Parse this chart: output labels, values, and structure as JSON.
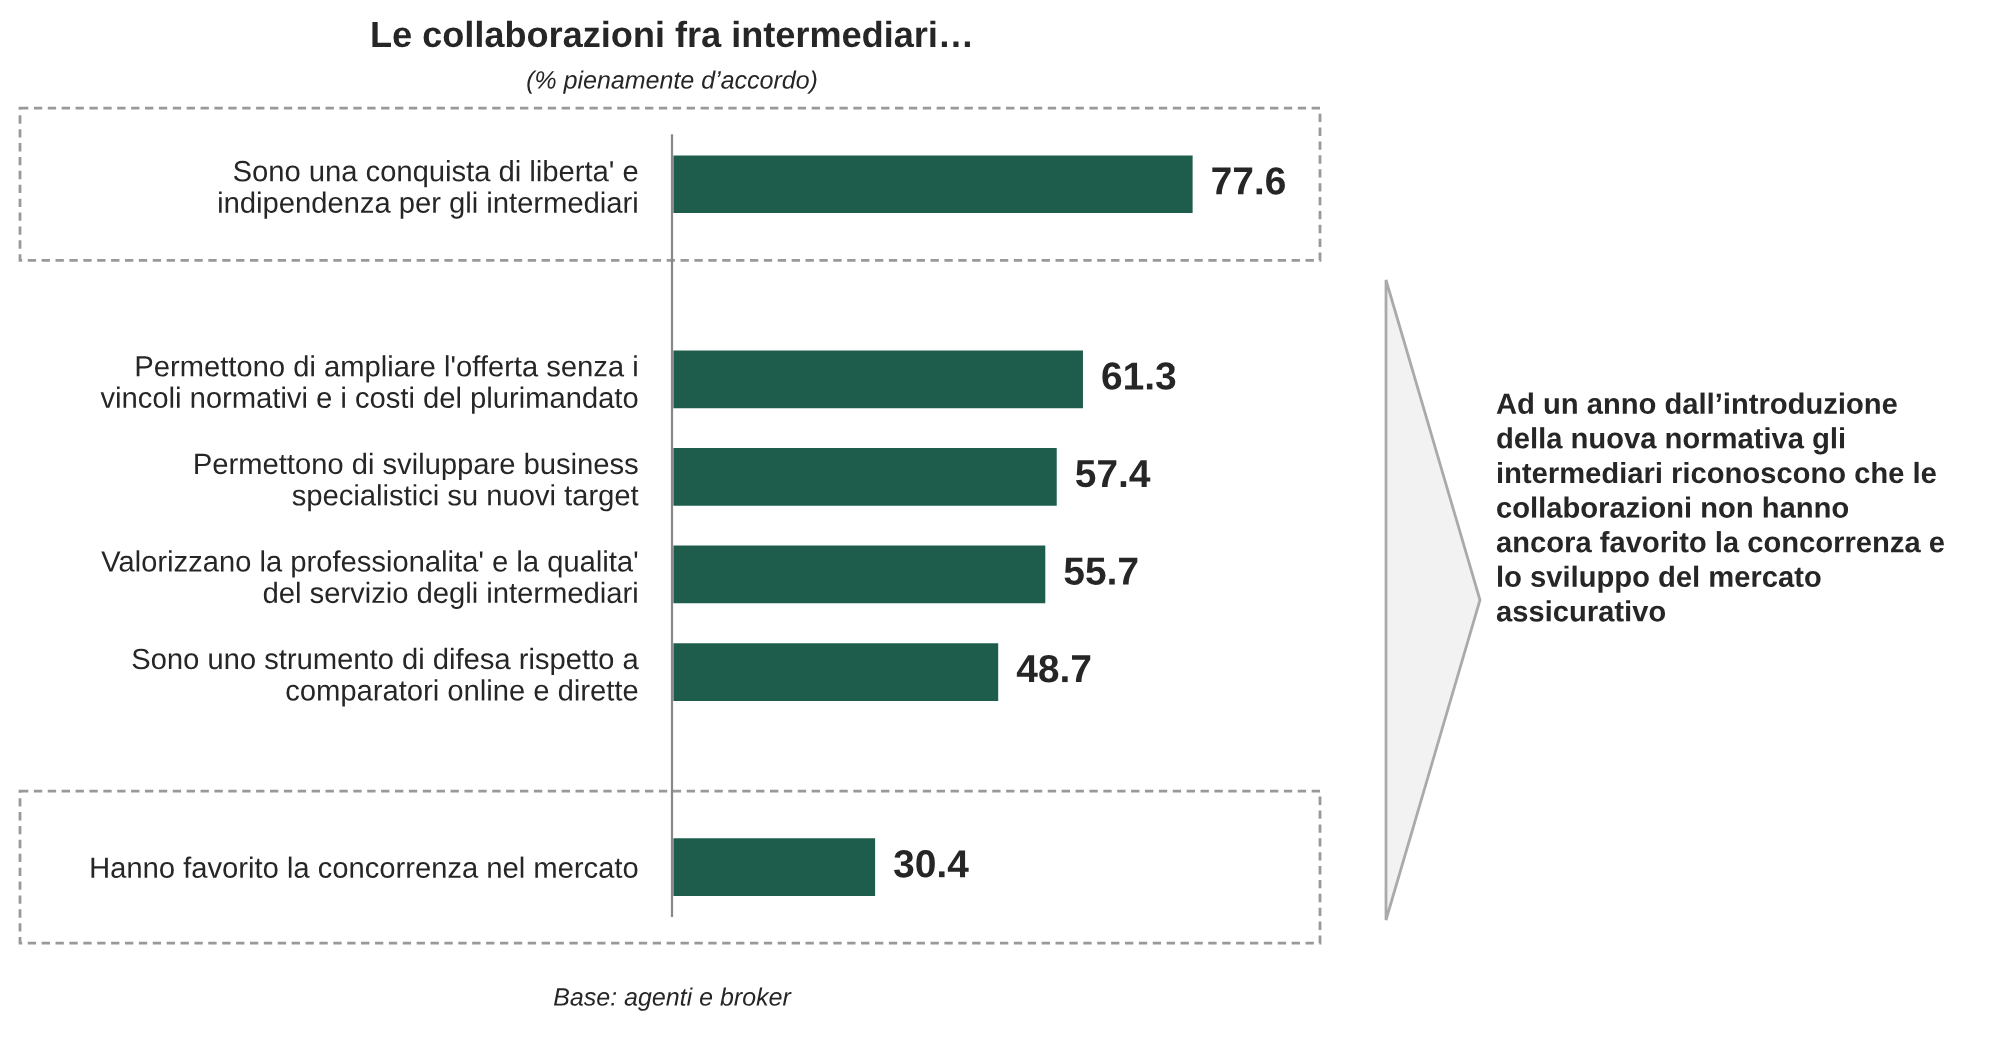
{
  "chart_data": {
    "type": "bar",
    "orientation": "horizontal",
    "title": "Le collaborazioni fra intermediari…",
    "subtitle": "(% pienamente d’accordo)",
    "categories": [
      "Sono una conquista di liberta' e\nindipendenza per gli intermediari",
      null,
      "Permettono di ampliare l'offerta senza i\nvincoli normativi e i costi del plurimandato",
      "Permettono di sviluppare business\nspecialistici su nuovi target",
      "Valorizzano la professionalita' e la qualita'\ndel servizio degli intermediari",
      "Sono uno strumento di difesa rispetto a\ncomparatori online e dirette",
      null,
      "Hanno favorito la concorrenza nel mercato"
    ],
    "values": [
      77.6,
      null,
      61.3,
      57.4,
      55.7,
      48.7,
      null,
      30.4
    ],
    "color": "#1e5c4c",
    "data_labels": true,
    "grid": false,
    "legend": false,
    "annotations": [
      "Base: agenti e broker",
      "Ad un anno dall’introduzione\ndella nuova normativa gli\nintermediari riconoscono che le\ncollaborazioni non hanno\nancora favorito la concorrenza e\nlo sviluppo del mercato\nassicurativo"
    ]
  }
}
